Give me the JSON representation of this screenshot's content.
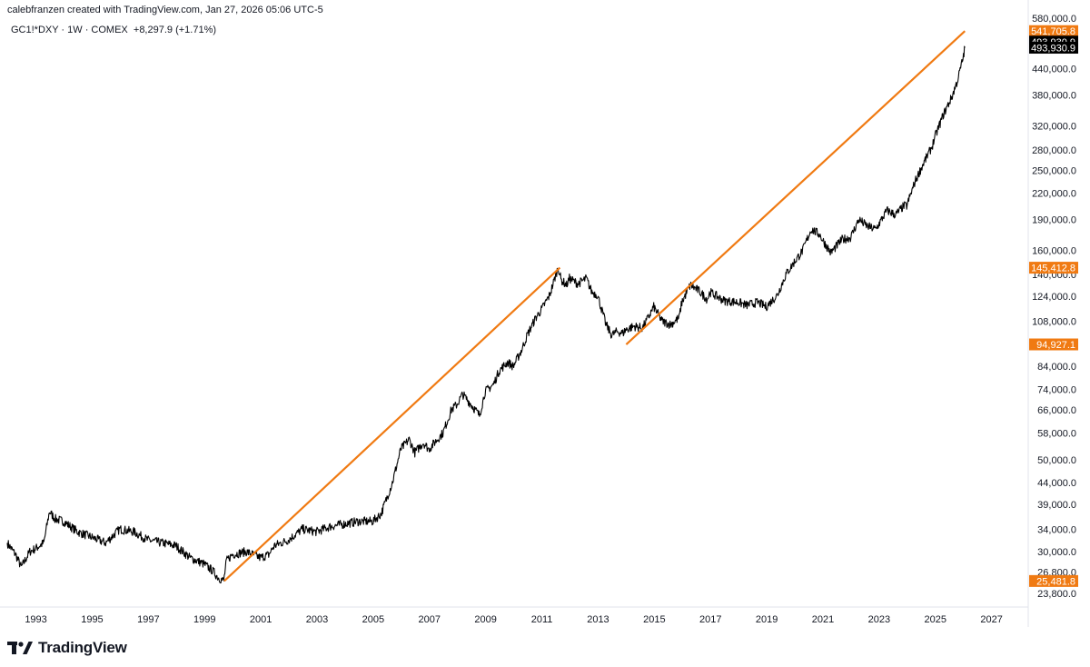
{
  "header": {
    "credit": "calebfranzen created with TradingView.com, Jan 27, 2026 05:06 UTC-5",
    "symbol": "GC1!*DXY · 1W · COMEX",
    "change": "+8,297.9 (+1.71%)"
  },
  "footer": {
    "brand": "TradingView",
    "logo_icon": "tradingview-logo-icon"
  },
  "colors": {
    "price_line": "#000000",
    "trend": "#f07a12",
    "badge_dark": "#000000",
    "axis_text": "#131722"
  },
  "chart_data": {
    "type": "line",
    "title": "",
    "xlabel": "",
    "ylabel": "",
    "y_scale": "log",
    "xlim": [
      1992.0,
      2028.0
    ],
    "ylim": [
      22500,
      588000
    ],
    "grid": false,
    "legend": "none",
    "y_ticks": [
      23800,
      26800,
      30000,
      34000,
      39000,
      44000,
      50000,
      58000,
      66000,
      74000,
      84000,
      108000,
      124000,
      140000,
      160000,
      190000,
      220000,
      250000,
      280000,
      320000,
      380000,
      440000
    ],
    "y_tick_labels": [
      "23,800.0",
      "26,800.0",
      "30,000.0",
      "34,000.0",
      "39,000.0",
      "44,000.0",
      "50,000.0",
      "58,000.0",
      "66,000.0",
      "74,000.0",
      "84,000.0",
      "108,000.0",
      "124,000.0",
      "140,000.0",
      "160,000.0",
      "190,000.0",
      "220,000.0",
      "250,000.0",
      "280,000.0",
      "320,000.0",
      "380,000.0",
      "440,000.0"
    ],
    "x_ticks": [
      1993,
      1995,
      1997,
      1999,
      2001,
      2003,
      2005,
      2007,
      2009,
      2011,
      2013,
      2015,
      2017,
      2019,
      2021,
      2023,
      2025,
      2027
    ],
    "x_tick_labels": [
      "1993",
      "1995",
      "1997",
      "1999",
      "2001",
      "2003",
      "2005",
      "2007",
      "2009",
      "2011",
      "2013",
      "2015",
      "2017",
      "2019",
      "2021",
      "2023",
      "2025",
      "2027"
    ],
    "top_cut_label": "580,000.0",
    "series": [
      {
        "x": [
          1992.0,
          1992.3,
          1992.5,
          1992.8,
          1993.0,
          1993.3,
          1993.5,
          1993.7,
          1994.0,
          1994.5,
          1995.0,
          1995.5,
          1996.0,
          1996.5,
          1997.0,
          1997.5,
          1998.0,
          1998.5,
          1999.0,
          1999.3,
          1999.5,
          1999.7,
          1999.8,
          2000.0,
          2000.5,
          2001.0,
          2001.3,
          2001.5,
          2002.0,
          2002.5,
          2003.0,
          2003.5,
          2004.0,
          2004.5,
          2005.0,
          2005.3,
          2005.7,
          2006.0,
          2006.3,
          2006.5,
          2006.8,
          2007.0,
          2007.3,
          2007.5,
          2007.8,
          2008.0,
          2008.2,
          2008.5,
          2008.8,
          2009.0,
          2009.3,
          2009.5,
          2009.8,
          2010.0,
          2010.3,
          2010.5,
          2010.8,
          2011.0,
          2011.3,
          2011.6,
          2011.7,
          2011.9,
          2012.0,
          2012.3,
          2012.6,
          2012.8,
          2013.0,
          2013.2,
          2013.3,
          2013.5,
          2013.7,
          2013.9,
          2014.0,
          2014.3,
          2014.6,
          2014.8,
          2015.0,
          2015.3,
          2015.6,
          2015.9,
          2016.0,
          2016.3,
          2016.6,
          2016.9,
          2017.0,
          2017.5,
          2018.0,
          2018.3,
          2018.7,
          2019.0,
          2019.4,
          2019.7,
          2020.0,
          2020.3,
          2020.6,
          2020.9,
          2021.0,
          2021.3,
          2021.7,
          2022.0,
          2022.3,
          2022.6,
          2022.9,
          2023.0,
          2023.3,
          2023.6,
          2023.9,
          2024.0,
          2024.3,
          2024.6,
          2024.9,
          2025.0,
          2025.3,
          2025.6,
          2025.8,
          2026.0,
          2026.07
        ],
        "y": [
          31500,
          29500,
          27500,
          30000,
          30500,
          31500,
          37500,
          36000,
          35500,
          33500,
          32500,
          31500,
          34000,
          33500,
          32000,
          31500,
          31000,
          29000,
          28000,
          27000,
          26000,
          25500,
          28500,
          29500,
          30000,
          29000,
          29500,
          31000,
          32000,
          34000,
          33500,
          34500,
          35000,
          35500,
          35500,
          37000,
          44000,
          53000,
          56000,
          52000,
          55000,
          53000,
          56000,
          58000,
          66000,
          68000,
          72000,
          68000,
          64000,
          73000,
          76000,
          82000,
          86000,
          84000,
          92000,
          100000,
          110000,
          115000,
          125000,
          146000,
          136000,
          132000,
          137000,
          133000,
          137000,
          127000,
          125000,
          112000,
          106000,
          100000,
          102000,
          101000,
          103000,
          105000,
          104000,
          110000,
          117000,
          108000,
          106000,
          110000,
          120000,
          132000,
          128000,
          122000,
          127000,
          121000,
          120000,
          118000,
          120000,
          117000,
          125000,
          140000,
          150000,
          160000,
          180000,
          175000,
          170000,
          158000,
          170000,
          172000,
          190000,
          183000,
          180000,
          185000,
          200000,
          195000,
          205000,
          205000,
          235000,
          260000,
          285000,
          300000,
          340000,
          375000,
          410000,
          465000,
          493930.9
        ]
      },
      {
        "name": "trend line 1",
        "x": [
          1999.72,
          2011.66
        ],
        "y": [
          25481.8,
          145412.8
        ]
      },
      {
        "name": "trend line 2",
        "x": [
          2014.02,
          2026.07
        ],
        "y": [
          94927.1,
          541705.8
        ]
      }
    ],
    "price_badges": [
      {
        "label": "541,705.8",
        "value": 541705.8,
        "style": "orange"
      },
      {
        "label": "493,930.9",
        "value": 511000,
        "style": "dark"
      },
      {
        "label": "493,930.9",
        "value": 493930.9,
        "style": "dark"
      },
      {
        "label": "145,412.8",
        "value": 145412.8,
        "style": "orange"
      },
      {
        "label": "94,927.1",
        "value": 94927.1,
        "style": "orange"
      },
      {
        "label": "25,481.8",
        "value": 25481.8,
        "style": "orange"
      }
    ]
  }
}
